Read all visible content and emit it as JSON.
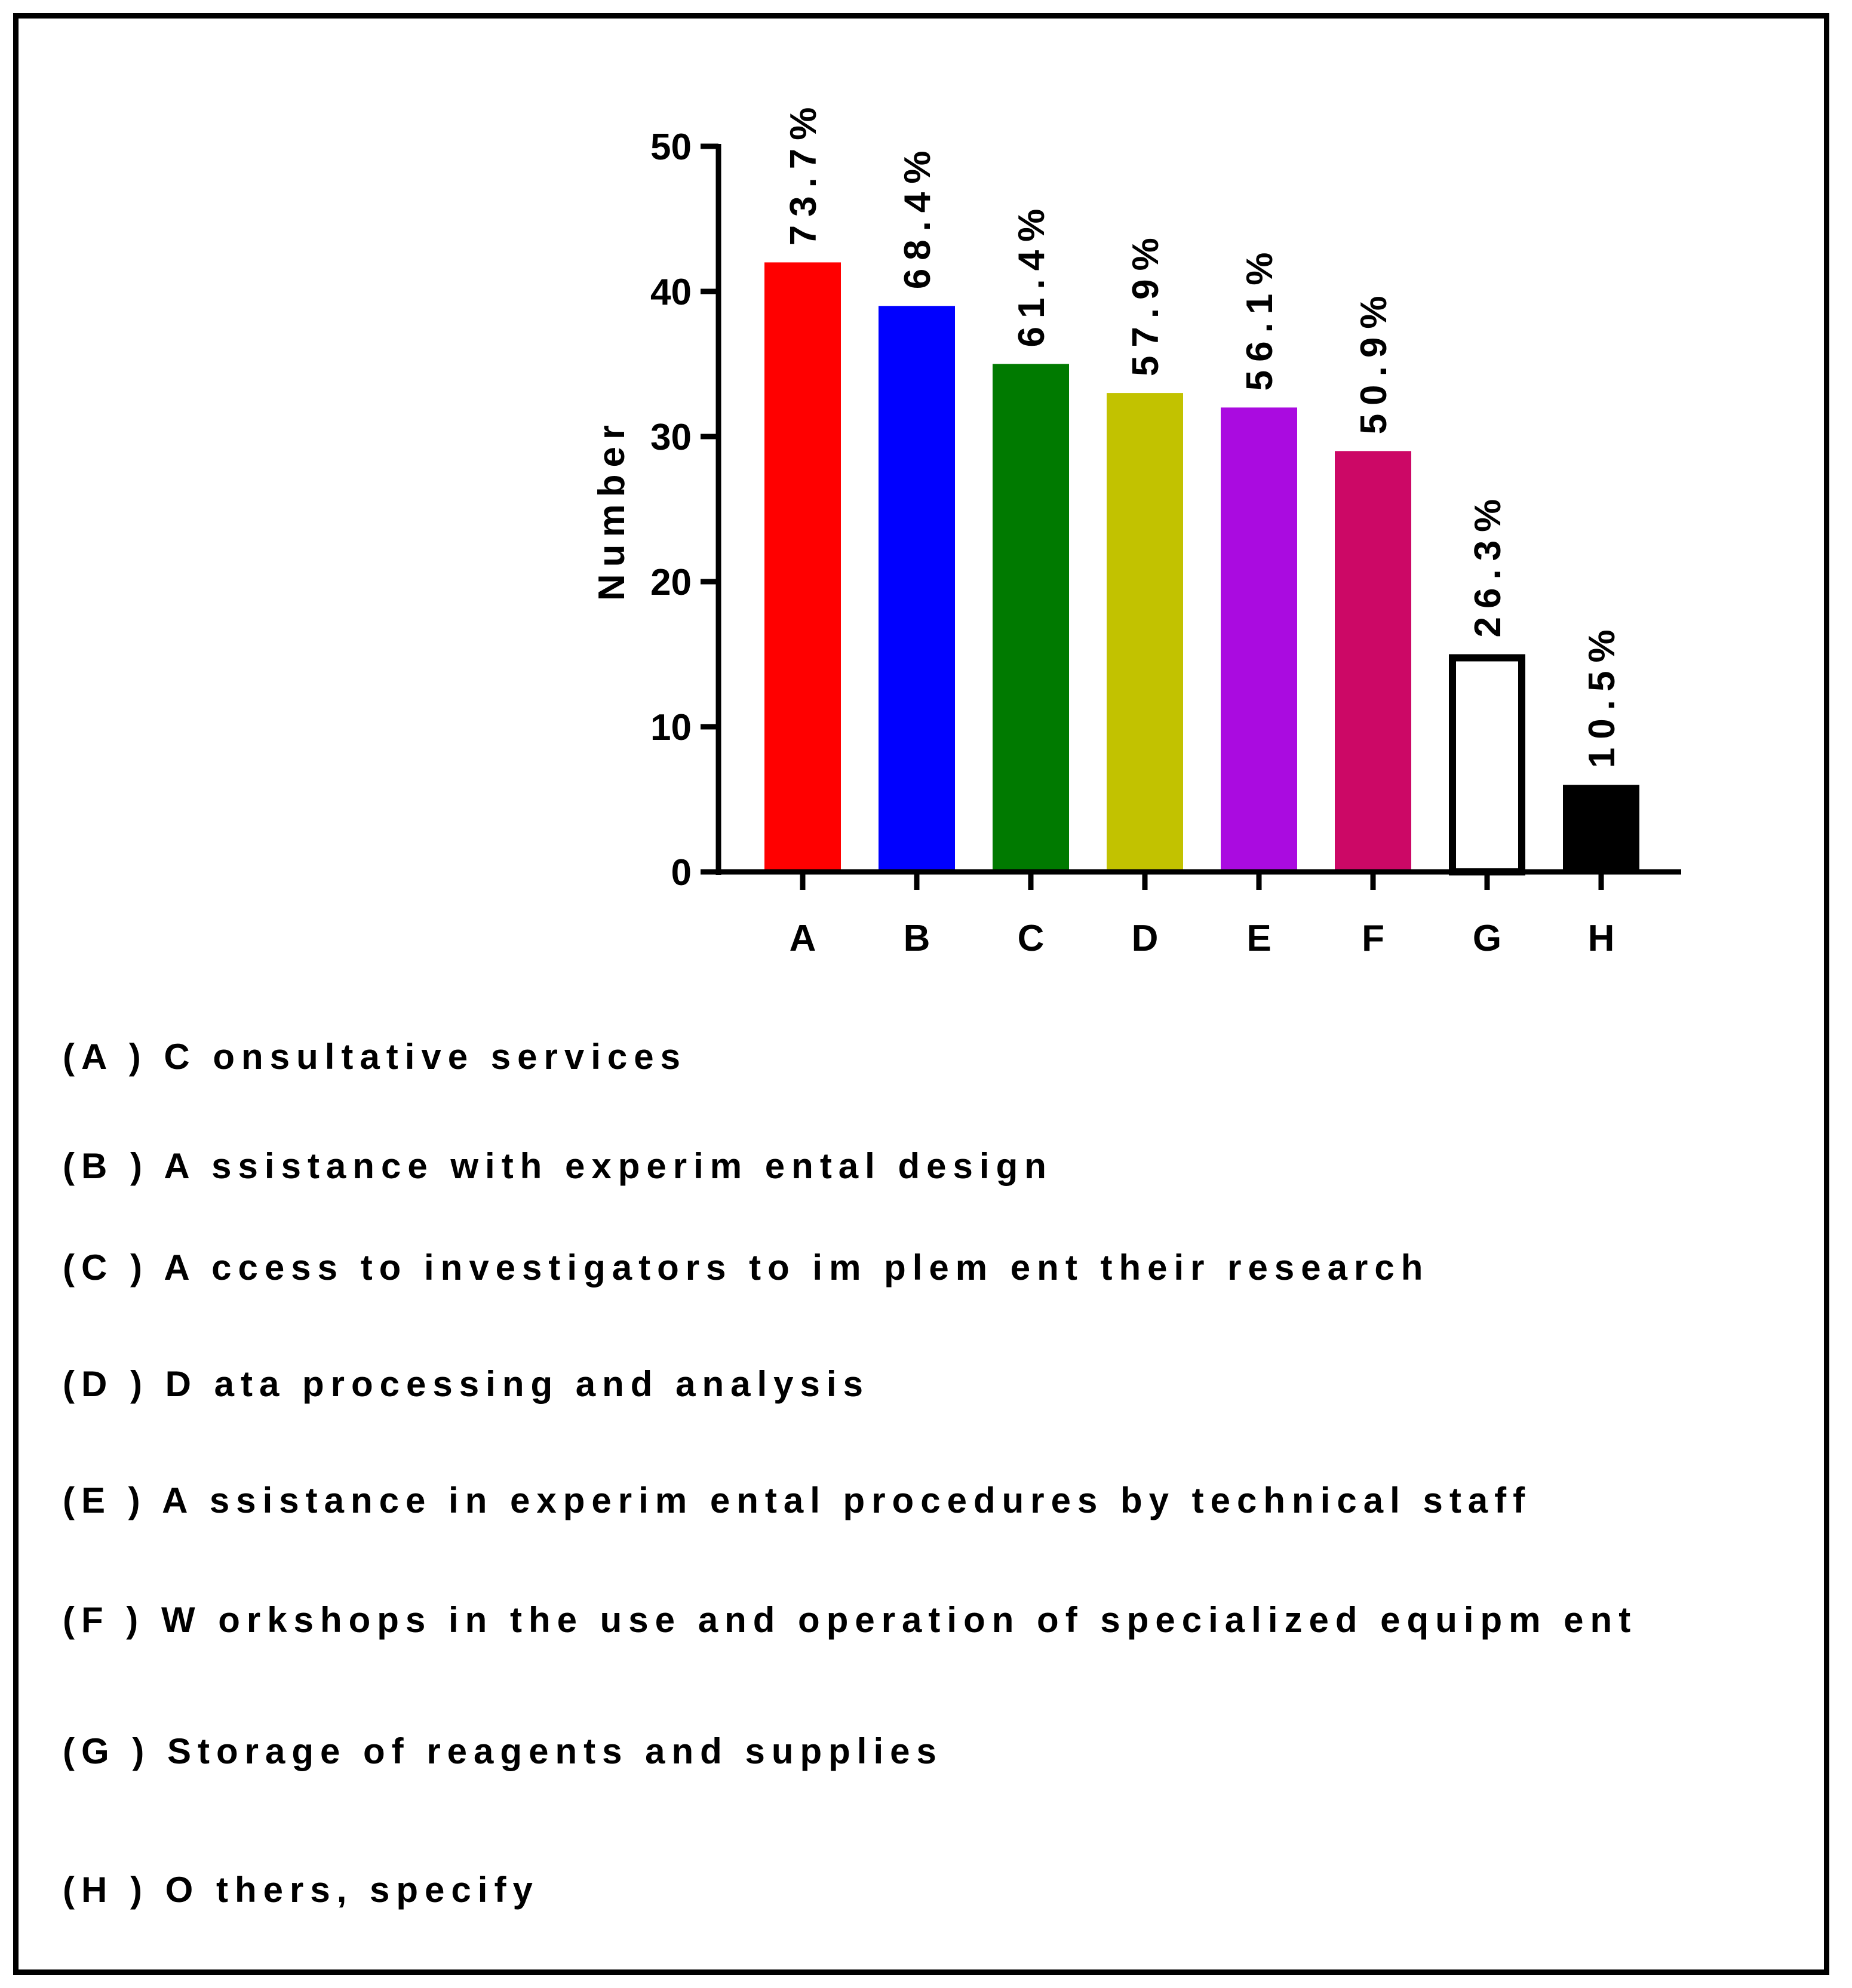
{
  "chart_data": {
    "type": "bar",
    "categories": [
      "A",
      "B",
      "C",
      "D",
      "E",
      "F",
      "G",
      "H"
    ],
    "values": [
      42,
      39,
      35,
      33,
      32,
      29,
      15,
      6
    ],
    "percent_labels": [
      "73.7%",
      "68.4%",
      "61.4%",
      "57.9%",
      "56.1%",
      "50.9%",
      "26.3%",
      "10.5%"
    ],
    "colors": [
      "#ff0000",
      "#0000ff",
      "#007a00",
      "#c2c200",
      "#aa0be0",
      "#cc0866",
      "#ffffff",
      "#000000"
    ],
    "outlined": [
      false,
      false,
      false,
      false,
      false,
      false,
      true,
      false
    ],
    "title": "",
    "xlabel": "",
    "ylabel": "Number",
    "ylim": [
      0,
      50
    ],
    "yticks": [
      0,
      10,
      20,
      30,
      40,
      50
    ],
    "grid": false
  },
  "legend": [
    "(A ) C onsultative services",
    "(B ) A ssistance with experim ental design",
    "(C ) A ccess to investigators to im plem ent their research",
    "(D ) D ata processing and analysis",
    "(E ) A ssistance in experim ental procedures by technical staff",
    "(F ) W orkshops in the use and operation of specialized equipm ent",
    "(G ) Storage of reagents and supplies",
    "(H ) O thers, specify"
  ]
}
